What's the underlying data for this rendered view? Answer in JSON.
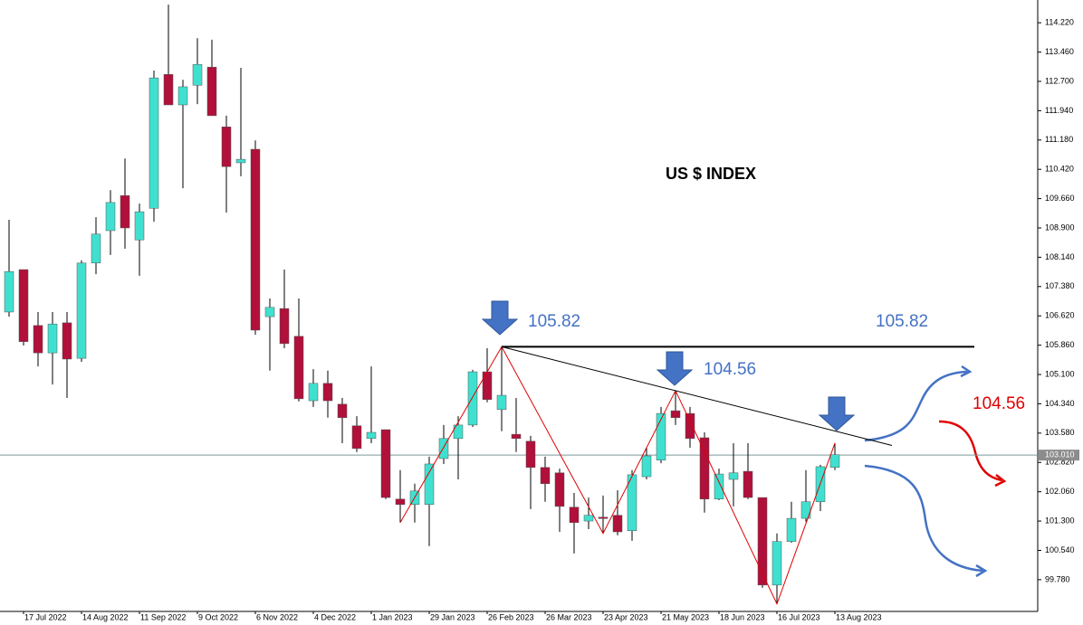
{
  "chart_data": {
    "type": "candlestick",
    "title": "US $ INDEX",
    "categories": [
      null,
      "17 Jul 2022",
      null,
      null,
      null,
      "14 Aug 2022",
      null,
      null,
      null,
      "11 Sep 2022",
      null,
      null,
      null,
      "9 Oct 2022",
      null,
      null,
      null,
      "6 Nov 2022",
      null,
      null,
      null,
      "4 Dec 2022",
      null,
      null,
      null,
      "1 Jan 2023",
      null,
      null,
      null,
      "29 Jan 2023",
      null,
      null,
      null,
      "26 Feb 2023",
      null,
      null,
      null,
      "26 Mar 2023",
      null,
      null,
      null,
      "23 Apr 2023",
      null,
      null,
      null,
      "21 May 2023",
      null,
      null,
      null,
      "18 Jun 2023",
      null,
      null,
      null,
      "16 Jul 2023",
      null,
      null,
      null,
      "13 Aug 2023"
    ],
    "open": [
      106.72,
      107.82,
      106.37,
      105.66,
      106.44,
      105.52,
      107.99,
      108.83,
      109.74,
      108.59,
      109.41,
      112.88,
      112.09,
      112.6,
      113.07,
      111.52,
      110.59,
      110.94,
      106.6,
      106.81,
      106.09,
      104.42,
      104.87,
      104.33,
      103.77,
      103.44,
      103.67,
      101.87,
      101.73,
      101.73,
      102.92,
      103.44,
      103.79,
      105.17,
      104.19,
      103.55,
      103.37,
      102.69,
      102.55,
      101.66,
      101.3,
      101.4,
      101.45,
      101.05,
      102.45,
      102.88,
      104.16,
      104.09,
      103.46,
      101.87,
      102.38,
      102.59,
      101.91,
      99.64,
      100.77,
      101.37,
      101.8,
      102.69
    ],
    "high": [
      109.11,
      107.82,
      106.72,
      106.72,
      106.72,
      108.06,
      109.18,
      109.88,
      110.7,
      109.53,
      112.98,
      114.69,
      112.74,
      113.82,
      113.78,
      111.81,
      113.05,
      111.17,
      107.07,
      107.82,
      107.07,
      105.24,
      105.2,
      104.49,
      104.02,
      105.31,
      103.67,
      102.62,
      102.27,
      102.97,
      103.79,
      104.02,
      105.22,
      105.78,
      105.82,
      104.49,
      103.51,
      102.97,
      102.66,
      102.03,
      101.91,
      101.96,
      102.1,
      102.62,
      103.2,
      104.26,
      104.68,
      104.26,
      103.6,
      102.66,
      103.32,
      103.32,
      101.91,
      100.98,
      101.8,
      102.62,
      102.76,
      103.32
    ],
    "low": [
      106.6,
      105.85,
      105.31,
      104.84,
      104.49,
      105.43,
      107.7,
      108.2,
      108.36,
      107.66,
      109.06,
      112.09,
      109.93,
      112.11,
      111.81,
      109.3,
      110.24,
      106.13,
      105.2,
      105.78,
      104.4,
      104.26,
      103.98,
      103.32,
      103.09,
      103.32,
      101.87,
      101.26,
      101.26,
      100.65,
      102.78,
      102.38,
      103.74,
      104.38,
      103.63,
      103.09,
      101.61,
      101.8,
      101.02,
      100.46,
      101.09,
      100.98,
      100.93,
      100.79,
      102.38,
      102.8,
      103.79,
      103.2,
      101.52,
      101.84,
      101.68,
      101.87,
      99.57,
      99.15,
      100.74,
      101.28,
      101.56,
      102.62
    ],
    "close": [
      107.77,
      105.95,
      105.66,
      106.41,
      105.5,
      107.99,
      108.74,
      109.56,
      108.9,
      109.32,
      112.79,
      112.09,
      112.56,
      113.14,
      111.81,
      110.49,
      110.68,
      106.25,
      106.84,
      105.9,
      104.47,
      104.87,
      104.42,
      103.98,
      103.18,
      103.6,
      101.91,
      101.73,
      102.08,
      102.78,
      103.44,
      103.79,
      105.17,
      104.45,
      104.56,
      103.44,
      102.69,
      102.27,
      101.68,
      101.26,
      101.45,
      101.37,
      101.02,
      102.5,
      102.99,
      104.09,
      103.98,
      103.44,
      101.87,
      102.52,
      102.55,
      101.91,
      99.64,
      100.77,
      101.37,
      101.8,
      102.71,
      103.02
    ],
    "up_color": "#40e0d0",
    "down_color": "#b0103a",
    "ylim": [
      98.98,
      114.81
    ],
    "yticks": [
      {
        "value": 99.78,
        "label": "99.780"
      },
      {
        "value": 100.54,
        "label": "100.540"
      },
      {
        "value": 101.3,
        "label": "101.300"
      },
      {
        "value": 102.06,
        "label": "102.060"
      },
      {
        "value": 102.82,
        "label": "102.820"
      },
      {
        "value": 103.58,
        "label": "103.580"
      },
      {
        "value": 104.34,
        "label": "104.340"
      },
      {
        "value": 105.1,
        "label": "105.100"
      },
      {
        "value": 105.86,
        "label": "105.860"
      },
      {
        "value": 106.62,
        "label": "106.620"
      },
      {
        "value": 107.38,
        "label": "107.380"
      },
      {
        "value": 108.14,
        "label": "108.140"
      },
      {
        "value": 108.9,
        "label": "108.900"
      },
      {
        "value": 109.66,
        "label": "109.660"
      },
      {
        "value": 110.42,
        "label": "110.420"
      },
      {
        "value": 111.18,
        "label": "111.180"
      },
      {
        "value": 111.94,
        "label": "111.940"
      },
      {
        "value": 112.7,
        "label": "112.700"
      },
      {
        "value": 113.46,
        "label": "113.460"
      },
      {
        "value": 114.22,
        "label": "114.220"
      }
    ],
    "current_price": {
      "value": 103.01,
      "label": "103.010"
    },
    "annotations": [
      {
        "value": 105.82,
        "label": "105.82"
      },
      {
        "value": 105.82,
        "label": "105.82"
      },
      {
        "value": 104.56,
        "label": "104.56"
      },
      {
        "value": 104.56,
        "label": "104.56"
      }
    ],
    "grid": false
  }
}
